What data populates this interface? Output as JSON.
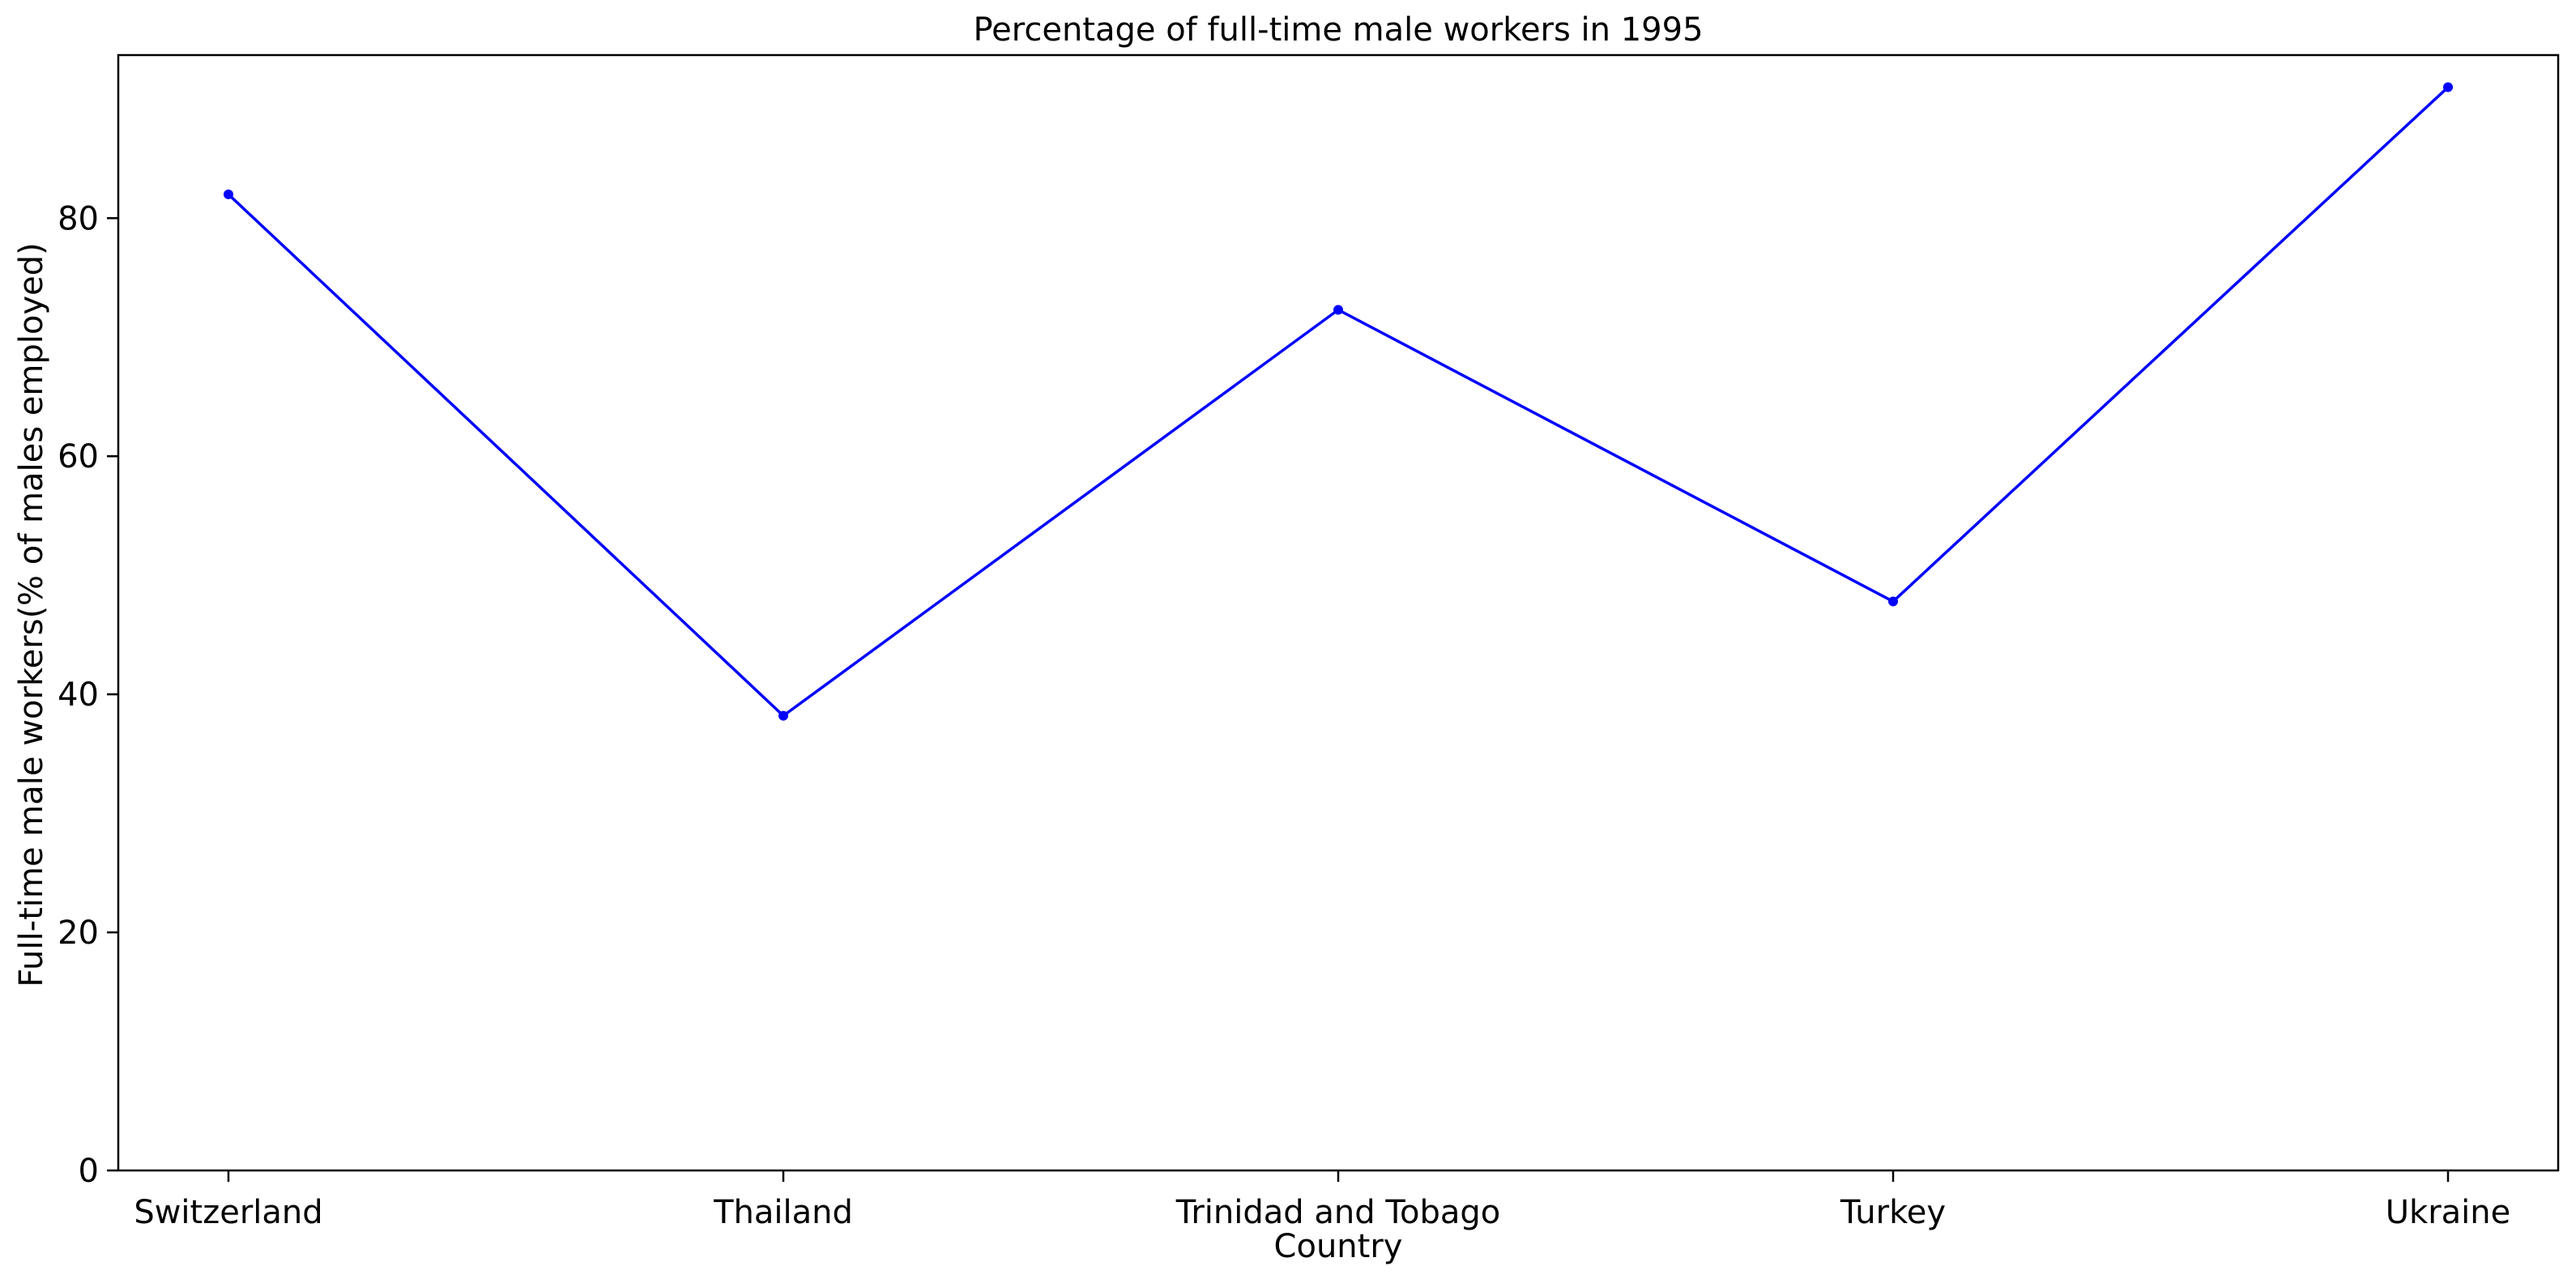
{
  "chart_data": {
    "type": "line",
    "title": "Percentage of full-time male workers in 1995",
    "xlabel": "Country",
    "ylabel": "Full-time male workers(% of males employed)",
    "categories": [
      "Switzerland",
      "Thailand",
      "Trinidad and Tobago",
      "Turkey",
      "Ukraine"
    ],
    "series": [
      {
        "values": [
          82.0,
          38.2,
          72.3,
          47.8,
          91.0
        ]
      }
    ],
    "ylim": [
      0,
      93.7
    ],
    "yticks": [
      0,
      20,
      40,
      60,
      80
    ],
    "grid": false,
    "legend": "none",
    "color": "#0000ff",
    "marker": "dot"
  }
}
